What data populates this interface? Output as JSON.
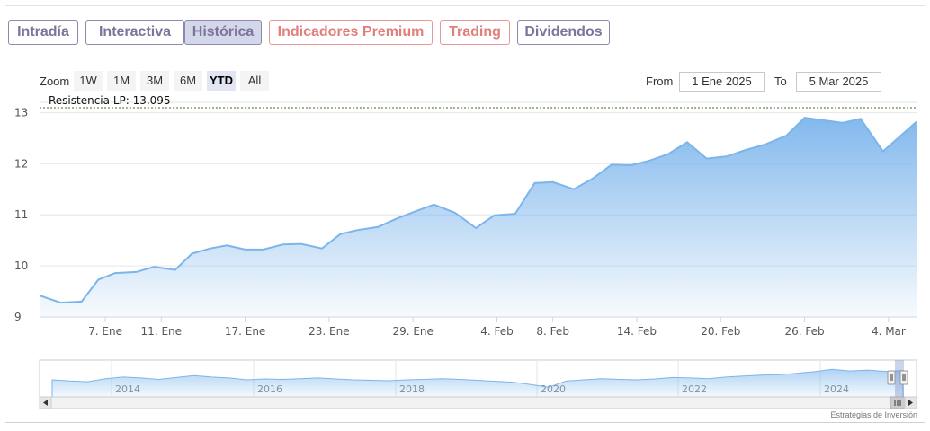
{
  "tabs": [
    {
      "label": "Intradía",
      "active": false,
      "premium": false
    },
    {
      "label": "Interactiva",
      "active": false,
      "premium": false
    },
    {
      "label": "Histórica",
      "active": true,
      "premium": false
    },
    {
      "label": "Indicadores Premium",
      "active": false,
      "premium": true
    },
    {
      "label": "Trading",
      "active": false,
      "premium": true
    },
    {
      "label": "Dividendos",
      "active": false,
      "premium": false
    }
  ],
  "range_selector": {
    "zoom_label": "Zoom",
    "buttons": [
      "1W",
      "1M",
      "3M",
      "6M",
      "YTD",
      "All"
    ],
    "active": "YTD",
    "from_label": "From",
    "from_value": "1 Ene 2025",
    "to_label": "To",
    "to_value": "5 Mar 2025"
  },
  "chart_data": {
    "type": "area",
    "series_color": "#7cb5ec",
    "ylim": [
      9,
      13.2
    ],
    "y_ticks": [
      9,
      10,
      11,
      12,
      13
    ],
    "x_ticks": [
      {
        "day": 7,
        "label": "7. Ene"
      },
      {
        "day": 11,
        "label": "11. Ene"
      },
      {
        "day": 17,
        "label": "17. Ene"
      },
      {
        "day": 23,
        "label": "23. Ene"
      },
      {
        "day": 29,
        "label": "29. Ene"
      },
      {
        "day": 35,
        "label": "4. Feb"
      },
      {
        "day": 39,
        "label": "8. Feb"
      },
      {
        "day": 45,
        "label": "14. Feb"
      },
      {
        "day": 51,
        "label": "20. Feb"
      },
      {
        "day": 57,
        "label": "26. Feb"
      },
      {
        "day": 63,
        "label": "4. Mar"
      }
    ],
    "x_range": [
      2.3,
      65
    ],
    "points": [
      [
        2.3,
        9.42
      ],
      [
        3.8,
        9.28
      ],
      [
        5.3,
        9.3
      ],
      [
        6.5,
        9.73
      ],
      [
        7.7,
        9.86
      ],
      [
        9.2,
        9.88
      ],
      [
        10.5,
        9.98
      ],
      [
        12.0,
        9.92
      ],
      [
        13.2,
        10.24
      ],
      [
        14.5,
        10.34
      ],
      [
        15.7,
        10.4
      ],
      [
        17.0,
        10.32
      ],
      [
        18.3,
        10.32
      ],
      [
        19.7,
        10.42
      ],
      [
        21.0,
        10.43
      ],
      [
        22.5,
        10.34
      ],
      [
        23.8,
        10.62
      ],
      [
        25.0,
        10.7
      ],
      [
        26.5,
        10.76
      ],
      [
        27.8,
        10.92
      ],
      [
        29.1,
        11.06
      ],
      [
        30.5,
        11.2
      ],
      [
        32.0,
        11.04
      ],
      [
        33.5,
        10.74
      ],
      [
        34.8,
        10.99
      ],
      [
        36.3,
        11.02
      ],
      [
        37.7,
        11.62
      ],
      [
        39.0,
        11.64
      ],
      [
        40.5,
        11.5
      ],
      [
        41.8,
        11.7
      ],
      [
        43.2,
        11.98
      ],
      [
        44.6,
        11.97
      ],
      [
        45.8,
        12.05
      ],
      [
        47.2,
        12.18
      ],
      [
        48.6,
        12.42
      ],
      [
        50.0,
        12.1
      ],
      [
        51.4,
        12.14
      ],
      [
        52.7,
        12.26
      ],
      [
        54.2,
        12.38
      ],
      [
        55.7,
        12.55
      ],
      [
        57.0,
        12.9
      ],
      [
        58.3,
        12.85
      ],
      [
        59.7,
        12.8
      ],
      [
        61.0,
        12.88
      ],
      [
        62.6,
        12.24
      ],
      [
        65.0,
        12.82
      ]
    ],
    "plot_line": {
      "value": 13.095,
      "label": "Resistencia LP: 13,095"
    }
  },
  "navigator": {
    "year_labels": [
      "2014",
      "2016",
      "2018",
      "2020",
      "2022",
      "2024"
    ],
    "series": [
      0.5,
      0.45,
      0.42,
      0.55,
      0.62,
      0.58,
      0.52,
      0.6,
      0.68,
      0.62,
      0.58,
      0.5,
      0.54,
      0.52,
      0.55,
      0.58,
      0.54,
      0.5,
      0.48,
      0.46,
      0.5,
      0.52,
      0.55,
      0.52,
      0.48,
      0.44,
      0.4,
      0.3,
      0.18,
      0.45,
      0.5,
      0.55,
      0.52,
      0.5,
      0.54,
      0.6,
      0.58,
      0.55,
      0.62,
      0.66,
      0.7,
      0.72,
      0.78,
      0.85,
      0.95,
      0.88,
      0.92,
      0.86,
      0.9
    ]
  },
  "credits": "Estrategias de Inversión"
}
